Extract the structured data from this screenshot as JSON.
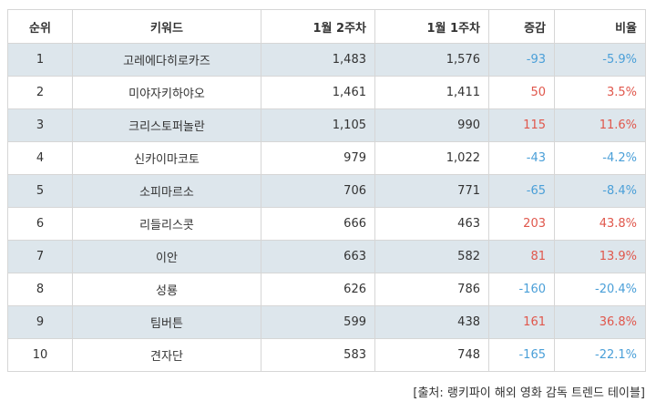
{
  "headers": [
    "순위",
    "키워드",
    "1월 2주차",
    "1월 1주차",
    "증감",
    "비율"
  ],
  "rows": [
    {
      "rank": "1",
      "keyword": "고레에다히로카즈",
      "week2": "1,483",
      "week1": "1,576",
      "change": "-93",
      "ratio": "-5.9%",
      "direction": "down"
    },
    {
      "rank": "2",
      "keyword": "미야자키하야오",
      "week2": "1,461",
      "week1": "1,411",
      "change": "50",
      "ratio": "3.5%",
      "direction": "up"
    },
    {
      "rank": "3",
      "keyword": "크리스토퍼놀란",
      "week2": "1,105",
      "week1": "990",
      "change": "115",
      "ratio": "11.6%",
      "direction": "up"
    },
    {
      "rank": "4",
      "keyword": "신카이마코토",
      "week2": "979",
      "week1": "1,022",
      "change": "-43",
      "ratio": "-4.2%",
      "direction": "down"
    },
    {
      "rank": "5",
      "keyword": "소피마르소",
      "week2": "706",
      "week1": "771",
      "change": "-65",
      "ratio": "-8.4%",
      "direction": "down"
    },
    {
      "rank": "6",
      "keyword": "리들리스콧",
      "week2": "666",
      "week1": "463",
      "change": "203",
      "ratio": "43.8%",
      "direction": "up"
    },
    {
      "rank": "7",
      "keyword": "이안",
      "week2": "663",
      "week1": "582",
      "change": "81",
      "ratio": "13.9%",
      "direction": "up"
    },
    {
      "rank": "8",
      "keyword": "성룡",
      "week2": "626",
      "week1": "786",
      "change": "-160",
      "ratio": "-20.4%",
      "direction": "down"
    },
    {
      "rank": "9",
      "keyword": "팀버튼",
      "week2": "599",
      "week1": "438",
      "change": "161",
      "ratio": "36.8%",
      "direction": "up"
    },
    {
      "rank": "10",
      "keyword": "견자단",
      "week2": "583",
      "week1": "748",
      "change": "-165",
      "ratio": "-22.1%",
      "direction": "down"
    }
  ],
  "colors": {
    "up": "#e0574c",
    "down": "#4a9fd8",
    "stripe": "#dde6ec"
  },
  "source": "[출처: 랭키파이 해외 영화 감독 트렌드 테이블]"
}
